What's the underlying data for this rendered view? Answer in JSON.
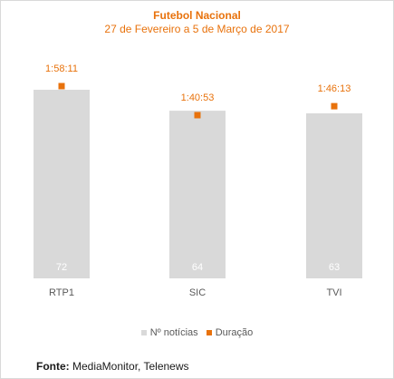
{
  "chart_data": {
    "type": "bar",
    "title": "Futebol Nacional",
    "subtitle": "27 de Fevereiro a 5 de Março de 2017",
    "categories": [
      "RTP1",
      "SIC",
      "TVI"
    ],
    "series": [
      {
        "name": "Nº notícias",
        "type": "bar",
        "values": [
          72,
          64,
          63
        ],
        "labels": [
          "72",
          "64",
          "63"
        ],
        "color": "#d9d9d9"
      },
      {
        "name": "Duração",
        "type": "scatter",
        "values_seconds": [
          7091,
          6053,
          6373
        ],
        "labels": [
          "1:58:11",
          "1:40:53",
          "1:46:13"
        ],
        "color": "#e8720c"
      }
    ],
    "legend_position": "bottom",
    "grid": false
  },
  "source": {
    "label": "Fonte:",
    "text": " MediaMonitor, Telenews"
  }
}
